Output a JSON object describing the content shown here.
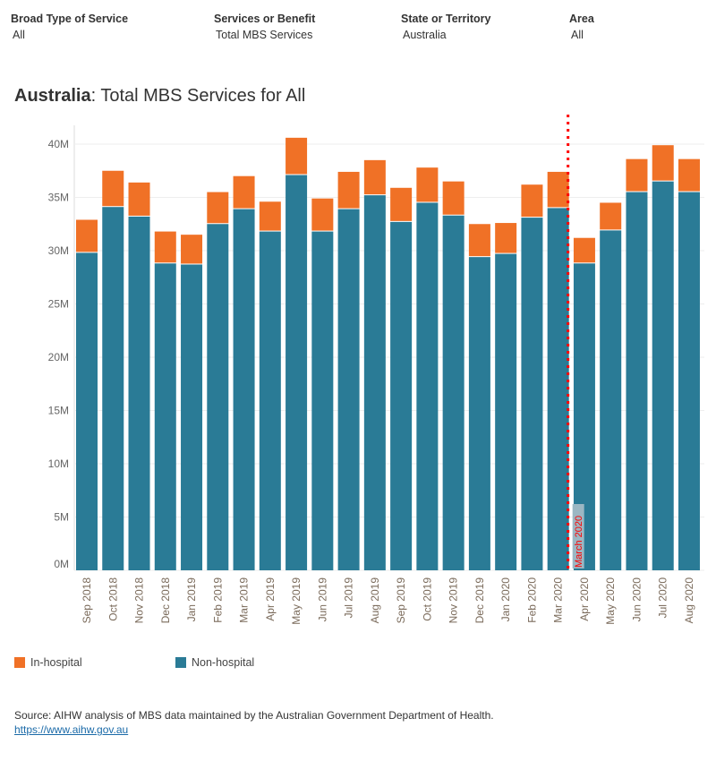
{
  "filters": [
    {
      "label": "Broad Type of Service",
      "value": "All"
    },
    {
      "label": "Services or Benefit",
      "value": "Total MBS Services"
    },
    {
      "label": "State or Territory",
      "value": "Australia"
    },
    {
      "label": "Area",
      "value": "All"
    }
  ],
  "title": {
    "bold": "Australia",
    "rest": ": Total MBS Services for All"
  },
  "footer": {
    "source": "Source: AIHW analysis of MBS data maintained by the Australian Government Department of Health.",
    "link": "https://www.aihw.gov.au"
  },
  "colors": {
    "in_hospital": "#f07126",
    "non_hospital": "#2a7b96",
    "marker": "#ff0000"
  },
  "chart_data": {
    "type": "bar",
    "stacked": true,
    "title": "Australia: Total MBS Services for All",
    "categories": [
      "Sep 2018",
      "Oct 2018",
      "Nov 2018",
      "Dec 2018",
      "Jan 2019",
      "Feb 2019",
      "Mar 2019",
      "Apr 2019",
      "May 2019",
      "Jun 2019",
      "Jul 2019",
      "Aug 2019",
      "Sep 2019",
      "Oct 2019",
      "Nov 2019",
      "Dec 2019",
      "Jan 2020",
      "Feb 2020",
      "Mar 2020",
      "Apr 2020",
      "May 2020",
      "Jun 2020",
      "Jul 2020",
      "Aug 2020"
    ],
    "series": [
      {
        "name": "Non-hospital",
        "values": [
          29.8,
          34.1,
          33.2,
          28.8,
          28.7,
          32.5,
          33.9,
          31.8,
          37.1,
          31.8,
          33.9,
          35.2,
          32.7,
          34.5,
          33.3,
          29.4,
          29.7,
          33.1,
          34.0,
          28.8,
          31.9,
          35.5,
          36.5,
          35.5
        ]
      },
      {
        "name": "In-hospital",
        "values": [
          3.1,
          3.4,
          3.2,
          3.0,
          2.8,
          3.0,
          3.1,
          2.8,
          3.5,
          3.1,
          3.5,
          3.3,
          3.2,
          3.3,
          3.2,
          3.1,
          2.9,
          3.1,
          3.4,
          2.4,
          2.6,
          3.1,
          3.4,
          3.1
        ]
      }
    ],
    "units": "M",
    "ylim": [
      0,
      42
    ],
    "yticks": [
      0,
      5,
      10,
      15,
      20,
      25,
      30,
      35,
      40
    ],
    "ytick_labels": [
      "0M",
      "5M",
      "10M",
      "15M",
      "20M",
      "25M",
      "30M",
      "35M",
      "40M"
    ],
    "xlabel": "",
    "ylabel": "",
    "grid": true,
    "legend": [
      "In-hospital",
      "Non-hospital"
    ],
    "legend_position": "bottom",
    "annotation": {
      "label": "March 2020",
      "after_category": "Mar 2020"
    }
  }
}
